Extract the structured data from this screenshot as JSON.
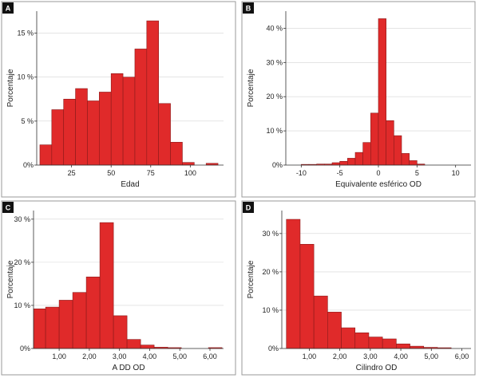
{
  "chart_data": [
    {
      "type": "bar",
      "panel": "A",
      "xlabel": "Edad",
      "ylabel": "Porcentaje",
      "xticks": [
        "25",
        "50",
        "75",
        "100"
      ],
      "xtick_values": [
        25,
        50,
        75,
        100
      ],
      "yticks": [
        "0%",
        "5 %",
        "10 %",
        "15 %"
      ],
      "ytick_values": [
        0,
        5,
        10,
        15
      ],
      "xlim": [
        3,
        121
      ],
      "ylim": [
        0,
        17.5
      ],
      "bins": [
        {
          "x0": 5,
          "x1": 12.5,
          "value": 2.3
        },
        {
          "x0": 12.5,
          "x1": 20,
          "value": 6.3
        },
        {
          "x0": 20,
          "x1": 27.5,
          "value": 7.5
        },
        {
          "x0": 27.5,
          "x1": 35,
          "value": 8.7
        },
        {
          "x0": 35,
          "x1": 42.5,
          "value": 7.3
        },
        {
          "x0": 42.5,
          "x1": 50,
          "value": 8.3
        },
        {
          "x0": 50,
          "x1": 57.5,
          "value": 10.4
        },
        {
          "x0": 57.5,
          "x1": 65,
          "value": 10.0
        },
        {
          "x0": 65,
          "x1": 72.5,
          "value": 13.2
        },
        {
          "x0": 72.5,
          "x1": 80,
          "value": 16.4
        },
        {
          "x0": 80,
          "x1": 87.5,
          "value": 7.0
        },
        {
          "x0": 87.5,
          "x1": 95,
          "value": 2.6
        },
        {
          "x0": 95,
          "x1": 102.5,
          "value": 0.3
        },
        {
          "x0": 110,
          "x1": 117.5,
          "value": 0.2
        }
      ]
    },
    {
      "type": "bar",
      "panel": "B",
      "xlabel": "Equivalente esférico OD",
      "ylabel": "Porcentaje",
      "xticks": [
        "-10",
        "-5",
        "0",
        "5",
        "10"
      ],
      "xtick_values": [
        -10,
        -5,
        0,
        5,
        10
      ],
      "yticks": [
        "0%",
        "10 %",
        "20 %",
        "30 %",
        "40 %"
      ],
      "ytick_values": [
        0,
        10,
        20,
        30,
        40
      ],
      "xlim": [
        -12,
        12
      ],
      "ylim": [
        0,
        45
      ],
      "bins": [
        {
          "x0": -10,
          "x1": -9,
          "value": 0.2
        },
        {
          "x0": -9,
          "x1": -8,
          "value": 0.2
        },
        {
          "x0": -8,
          "x1": -7,
          "value": 0.3
        },
        {
          "x0": -7,
          "x1": -6,
          "value": 0.3
        },
        {
          "x0": -6,
          "x1": -5,
          "value": 0.7
        },
        {
          "x0": -5,
          "x1": -4,
          "value": 1.1
        },
        {
          "x0": -4,
          "x1": -3,
          "value": 2.0
        },
        {
          "x0": -3,
          "x1": -2,
          "value": 3.7
        },
        {
          "x0": -2,
          "x1": -1,
          "value": 6.6
        },
        {
          "x0": -1,
          "x1": 0,
          "value": 15.2
        },
        {
          "x0": 0,
          "x1": 1,
          "value": 42.8
        },
        {
          "x0": 1,
          "x1": 2,
          "value": 13.0
        },
        {
          "x0": 2,
          "x1": 3,
          "value": 8.6
        },
        {
          "x0": 3,
          "x1": 4,
          "value": 3.4
        },
        {
          "x0": 4,
          "x1": 5,
          "value": 1.3
        },
        {
          "x0": 5,
          "x1": 6,
          "value": 0.3
        }
      ]
    },
    {
      "type": "bar",
      "panel": "C",
      "xlabel": "A DD OD",
      "ylabel": "Porcentaje",
      "xticks": [
        "1,00",
        "2,00",
        "3,00",
        "4,00",
        "5,00",
        "6,00"
      ],
      "xtick_values": [
        1,
        2,
        3,
        4,
        5,
        6
      ],
      "yticks": [
        "0%",
        "10 %",
        "20 %",
        "30 %"
      ],
      "ytick_values": [
        0,
        10,
        20,
        30
      ],
      "xlim": [
        0.15,
        6.45
      ],
      "ylim": [
        0,
        32
      ],
      "bins": [
        {
          "x0": 0.15,
          "x1": 0.55,
          "value": 9.2
        },
        {
          "x0": 0.55,
          "x1": 1.0,
          "value": 9.6
        },
        {
          "x0": 1.0,
          "x1": 1.45,
          "value": 11.2
        },
        {
          "x0": 1.45,
          "x1": 1.9,
          "value": 13.0
        },
        {
          "x0": 1.9,
          "x1": 2.35,
          "value": 16.6
        },
        {
          "x0": 2.35,
          "x1": 2.8,
          "value": 29.2
        },
        {
          "x0": 2.8,
          "x1": 3.25,
          "value": 7.6
        },
        {
          "x0": 3.25,
          "x1": 3.7,
          "value": 2.1
        },
        {
          "x0": 3.7,
          "x1": 4.15,
          "value": 0.8
        },
        {
          "x0": 4.15,
          "x1": 4.6,
          "value": 0.3
        },
        {
          "x0": 4.6,
          "x1": 5.05,
          "value": 0.2
        },
        {
          "x0": 5.95,
          "x1": 6.4,
          "value": 0.2
        }
      ]
    },
    {
      "type": "bar",
      "panel": "D",
      "xlabel": "Cilindro OD",
      "ylabel": "Porcentaje",
      "xticks": [
        "1,00",
        "2,00",
        "3,00",
        "4,00",
        "5,00",
        "6,00"
      ],
      "xtick_values": [
        1,
        2,
        3,
        4,
        5,
        6
      ],
      "yticks": [
        "0%",
        "10 %",
        "20 %",
        "30 %"
      ],
      "ytick_values": [
        0,
        10,
        20,
        30
      ],
      "xlim": [
        0.1,
        6.3
      ],
      "ylim": [
        0,
        36
      ],
      "bins": [
        {
          "x0": 0.25,
          "x1": 0.7,
          "value": 33.7
        },
        {
          "x0": 0.7,
          "x1": 1.15,
          "value": 27.2
        },
        {
          "x0": 1.15,
          "x1": 1.6,
          "value": 13.7
        },
        {
          "x0": 1.6,
          "x1": 2.05,
          "value": 9.5
        },
        {
          "x0": 2.05,
          "x1": 2.5,
          "value": 5.4
        },
        {
          "x0": 2.5,
          "x1": 2.95,
          "value": 4.1
        },
        {
          "x0": 2.95,
          "x1": 3.4,
          "value": 3.0
        },
        {
          "x0": 3.4,
          "x1": 3.85,
          "value": 2.5
        },
        {
          "x0": 3.85,
          "x1": 4.3,
          "value": 1.2
        },
        {
          "x0": 4.3,
          "x1": 4.75,
          "value": 0.6
        },
        {
          "x0": 4.75,
          "x1": 5.2,
          "value": 0.3
        },
        {
          "x0": 5.2,
          "x1": 5.65,
          "value": 0.2
        }
      ]
    }
  ],
  "style": {
    "bar_fill": "#e02a2a",
    "bar_stroke": "#8a1a1a",
    "panel_border": "#9a9a9a",
    "badge_fill": "#111111",
    "grid_color": "#d4d4d4"
  }
}
